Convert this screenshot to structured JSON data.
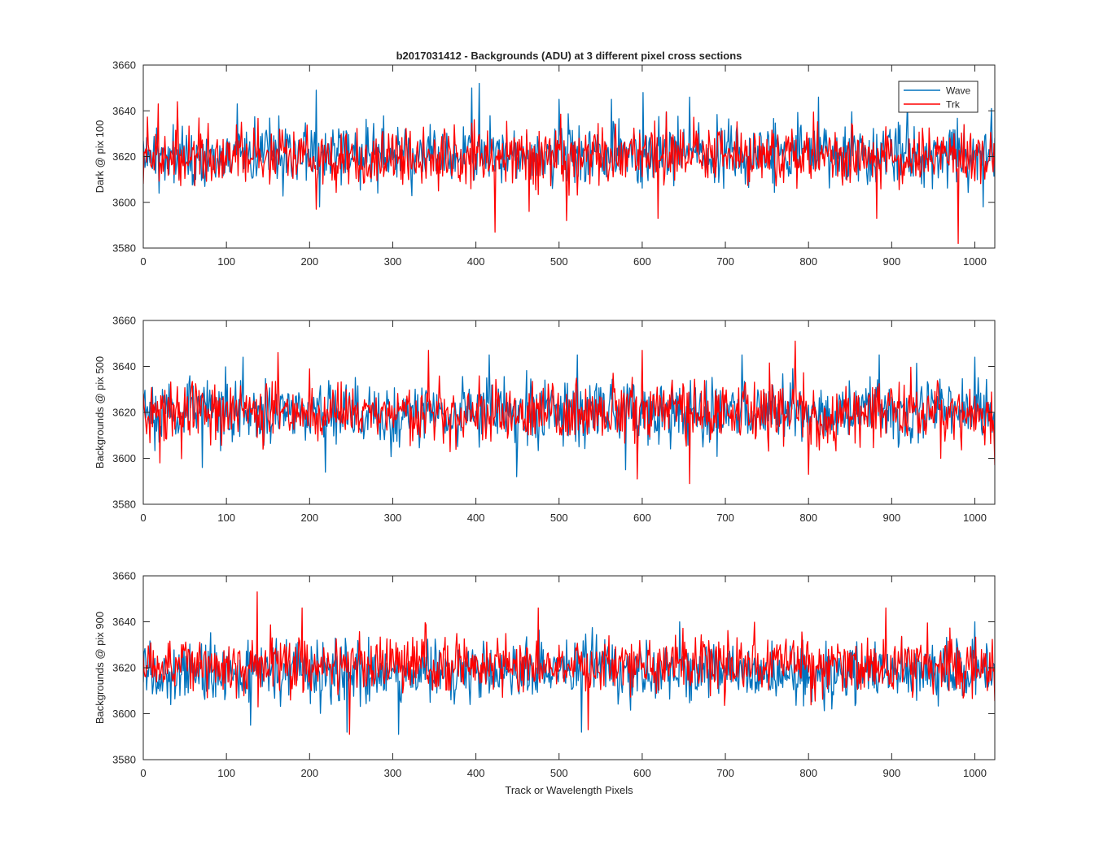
{
  "chart_data": [
    {
      "type": "line",
      "title": "b2017031412 - Backgrounds (ADU) at 3 different pixel cross sections",
      "xlabel": "",
      "ylabel": "Dark @ pix 100",
      "xlim": [
        0,
        1024
      ],
      "ylim": [
        3580,
        3660
      ],
      "xticks": [
        0,
        100,
        200,
        300,
        400,
        500,
        600,
        700,
        800,
        900,
        1000
      ],
      "yticks": [
        3580,
        3600,
        3620,
        3640,
        3660
      ],
      "legend": {
        "position": "top-right",
        "entries": [
          "Wave",
          "Trk"
        ]
      },
      "series": [
        {
          "name": "Wave",
          "color": "#0072BD",
          "mean": 3621,
          "sd": 7.5,
          "seed": 11,
          "points": [
            [
              19,
              3604
            ],
            [
              113,
              3643
            ],
            [
              208,
              3649
            ],
            [
              212,
              3598
            ],
            [
              395,
              3650
            ],
            [
              404,
              3652
            ],
            [
              500,
              3645
            ],
            [
              563,
              3645
            ],
            [
              601,
              3648
            ],
            [
              657,
              3646
            ],
            [
              812,
              3646
            ],
            [
              919,
              3644
            ],
            [
              1010,
              3598
            ],
            [
              1020,
              3641
            ]
          ]
        },
        {
          "name": "Trk",
          "color": "#FF0000",
          "mean": 3620,
          "sd": 7.0,
          "seed": 23,
          "points": [
            [
              18,
              3643
            ],
            [
              41,
              3644
            ],
            [
              208,
              3597
            ],
            [
              423,
              3587
            ],
            [
              464,
              3596
            ],
            [
              509,
              3592
            ],
            [
              619,
              3593
            ],
            [
              882,
              3593
            ],
            [
              980,
              3582
            ]
          ]
        }
      ]
    },
    {
      "type": "line",
      "title": "",
      "xlabel": "",
      "ylabel": "Backgrounds @ pix 500",
      "xlim": [
        0,
        1024
      ],
      "ylim": [
        3580,
        3660
      ],
      "xticks": [
        0,
        100,
        200,
        300,
        400,
        500,
        600,
        700,
        800,
        900,
        1000
      ],
      "yticks": [
        3580,
        3600,
        3620,
        3640,
        3660
      ],
      "series": [
        {
          "name": "Wave",
          "color": "#0072BD",
          "mean": 3620,
          "sd": 8.0,
          "seed": 37,
          "points": [
            [
              120,
              3644
            ],
            [
              219,
              3594
            ],
            [
              416,
              3645
            ],
            [
              449,
              3592
            ],
            [
              522,
              3645
            ],
            [
              580,
              3595
            ],
            [
              720,
              3645
            ],
            [
              885,
              3645
            ],
            [
              1000,
              3644
            ]
          ]
        },
        {
          "name": "Trk",
          "color": "#FF0000",
          "mean": 3620,
          "sd": 7.5,
          "seed": 41,
          "points": [
            [
              20,
              3598
            ],
            [
              162,
              3646
            ],
            [
              343,
              3647
            ],
            [
              594,
              3591
            ],
            [
              600,
              3647
            ],
            [
              657,
              3589
            ],
            [
              784,
              3651
            ],
            [
              800,
              3593
            ],
            [
              1024,
              3597
            ]
          ]
        }
      ]
    },
    {
      "type": "line",
      "title": "",
      "xlabel": "Track or Wavelength Pixels",
      "ylabel": "Backgrounds @ pix 900",
      "xlim": [
        0,
        1024
      ],
      "ylim": [
        3580,
        3660
      ],
      "xticks": [
        0,
        100,
        200,
        300,
        400,
        500,
        600,
        700,
        800,
        900,
        1000
      ],
      "yticks": [
        3580,
        3600,
        3620,
        3640,
        3660
      ],
      "series": [
        {
          "name": "Wave",
          "color": "#0072BD",
          "mean": 3618,
          "sd": 7.5,
          "seed": 53,
          "points": [
            [
              129,
              3595
            ],
            [
              245,
              3592
            ],
            [
              307,
              3591
            ],
            [
              527,
              3592
            ],
            [
              1000,
              3640
            ]
          ]
        },
        {
          "name": "Trk",
          "color": "#FF0000",
          "mean": 3621,
          "sd": 7.0,
          "seed": 67,
          "points": [
            [
              137,
              3653
            ],
            [
              191,
              3646
            ],
            [
              248,
              3591
            ],
            [
              475,
              3646
            ],
            [
              535,
              3593
            ],
            [
              893,
              3646
            ]
          ]
        }
      ]
    }
  ]
}
